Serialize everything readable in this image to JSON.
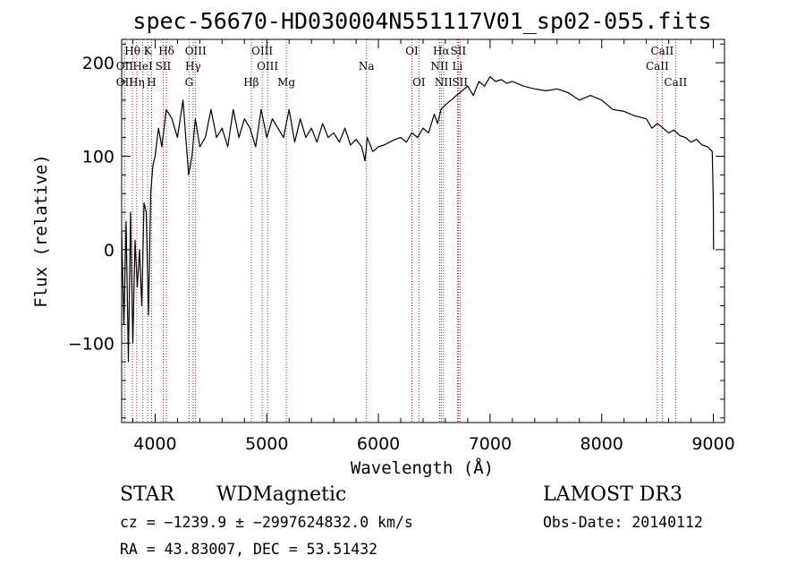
{
  "title": "spec-56670-HD030004N551117V01_sp02-055.fits",
  "info": {
    "class_label": "STAR",
    "subclass_label": "WDMagnetic",
    "survey": "LAMOST DR3",
    "cz_line": "cz = −1239.9 ± −2997624832.0 km/s",
    "obs_date": "Obs-Date: 20140112",
    "radec_line": "RA =  43.83007, DEC =  53.51432"
  },
  "chart_data": {
    "type": "line",
    "xlabel": "Wavelength (Å)",
    "ylabel": "Flux (relative)",
    "xlim": [
      3700,
      9100
    ],
    "ylim": [
      -185,
      225
    ],
    "xticks": [
      4000,
      5000,
      6000,
      7000,
      8000,
      9000
    ],
    "yticks": [
      -100,
      0,
      100,
      200
    ],
    "ytick_labels": [
      "−100",
      "0",
      "100",
      "200"
    ],
    "line_color": "#000000",
    "marker_color": "#a52a2a",
    "spectrum": {
      "x": [
        3700,
        3720,
        3740,
        3760,
        3780,
        3800,
        3820,
        3840,
        3860,
        3880,
        3900,
        3920,
        3940,
        3960,
        3980,
        4000,
        4030,
        4060,
        4100,
        4150,
        4200,
        4250,
        4300,
        4330,
        4360,
        4400,
        4450,
        4500,
        4550,
        4600,
        4650,
        4700,
        4750,
        4800,
        4850,
        4900,
        4950,
        5000,
        5050,
        5100,
        5150,
        5200,
        5250,
        5300,
        5350,
        5400,
        5450,
        5500,
        5550,
        5600,
        5650,
        5700,
        5750,
        5800,
        5850,
        5880,
        5900,
        5950,
        6000,
        6050,
        6100,
        6150,
        6200,
        6250,
        6300,
        6350,
        6400,
        6450,
        6500,
        6530,
        6560,
        6600,
        6650,
        6700,
        6750,
        6800,
        6850,
        6900,
        6950,
        7000,
        7050,
        7100,
        7150,
        7200,
        7300,
        7400,
        7500,
        7600,
        7700,
        7800,
        7900,
        8000,
        8100,
        8200,
        8300,
        8400,
        8450,
        8500,
        8550,
        8600,
        8650,
        8700,
        8750,
        8800,
        8850,
        8900,
        8950,
        8990,
        9000,
        9002
      ],
      "y": [
        20,
        -80,
        30,
        -120,
        40,
        -100,
        10,
        -40,
        0,
        -60,
        50,
        40,
        -70,
        60,
        90,
        100,
        130,
        110,
        150,
        140,
        120,
        160,
        80,
        100,
        140,
        110,
        120,
        150,
        120,
        130,
        110,
        150,
        120,
        140,
        130,
        110,
        150,
        120,
        140,
        130,
        120,
        150,
        115,
        140,
        120,
        130,
        115,
        135,
        120,
        125,
        115,
        130,
        112,
        118,
        110,
        95,
        120,
        105,
        110,
        112,
        115,
        118,
        120,
        115,
        125,
        120,
        130,
        125,
        145,
        135,
        150,
        155,
        160,
        165,
        170,
        175,
        165,
        180,
        175,
        185,
        180,
        182,
        178,
        180,
        175,
        172,
        170,
        172,
        168,
        160,
        165,
        160,
        150,
        148,
        143,
        140,
        130,
        135,
        130,
        125,
        128,
        122,
        120,
        115,
        118,
        112,
        110,
        105,
        50,
        0
      ]
    },
    "lines": [
      {
        "label": "Hθ",
        "x": 3797,
        "row": 0
      },
      {
        "label": "K",
        "x": 3933,
        "row": 0
      },
      {
        "label": "Hδ",
        "x": 4101,
        "row": 0
      },
      {
        "label": "OIII",
        "x": 4363,
        "row": 0
      },
      {
        "label": "OIII",
        "x": 4959,
        "row": 0
      },
      {
        "label": "OI",
        "x": 6300,
        "row": 0
      },
      {
        "label": "Hα",
        "x": 6563,
        "row": 0
      },
      {
        "label": "SII",
        "x": 6716,
        "row": 0
      },
      {
        "label": "CaII",
        "x": 8542,
        "row": 0
      },
      {
        "label": "OII",
        "x": 3727,
        "row": 1
      },
      {
        "label": "HeI",
        "x": 3889,
        "row": 1
      },
      {
        "label": "SII",
        "x": 4072,
        "row": 1
      },
      {
        "label": "Hγ",
        "x": 4340,
        "row": 1
      },
      {
        "label": "OIII",
        "x": 5007,
        "row": 1
      },
      {
        "label": "Na",
        "x": 5893,
        "row": 1
      },
      {
        "label": "NII",
        "x": 6548,
        "row": 1
      },
      {
        "label": "Li",
        "x": 6708,
        "row": 1
      },
      {
        "label": "CaII",
        "x": 8498,
        "row": 1
      },
      {
        "label": "OII",
        "x": 3727,
        "row": 2
      },
      {
        "label": "Hη",
        "x": 3835,
        "row": 2
      },
      {
        "label": "H",
        "x": 3968,
        "row": 2
      },
      {
        "label": "G",
        "x": 4304,
        "row": 2
      },
      {
        "label": "Hβ",
        "x": 4861,
        "row": 2
      },
      {
        "label": "Mg",
        "x": 5175,
        "row": 2
      },
      {
        "label": "OI",
        "x": 6363,
        "row": 2
      },
      {
        "label": "NII",
        "x": 6583,
        "row": 2
      },
      {
        "label": "SII",
        "x": 6731,
        "row": 2
      },
      {
        "label": "CaII",
        "x": 8662,
        "row": 2
      }
    ]
  }
}
